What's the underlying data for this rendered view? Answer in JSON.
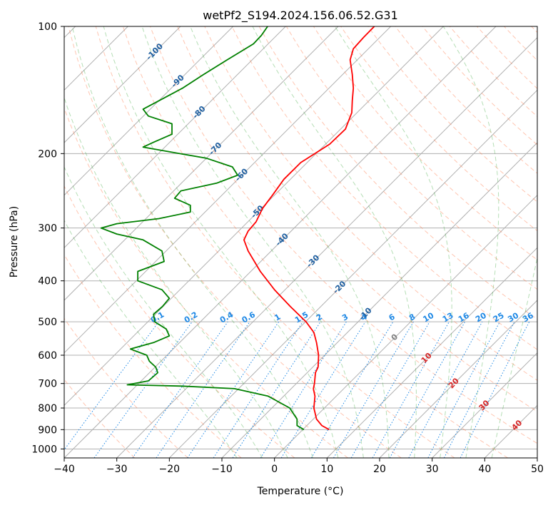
{
  "chart_data": {
    "type": "line",
    "subtype": "skew-T log-P diagram",
    "title": "wetPf2_S194.2024.156.06.52.G31",
    "xlabel": "Temperature (°C)",
    "ylabel": "Pressure (hPa)",
    "xlim": [
      -40,
      50
    ],
    "ylim": [
      1050,
      100
    ],
    "y_scale": "log",
    "grid": true,
    "x_ticks": [
      -40,
      -30,
      -20,
      -10,
      0,
      10,
      20,
      30,
      40,
      50
    ],
    "y_ticks": [
      100,
      200,
      300,
      400,
      500,
      600,
      700,
      800,
      900,
      1000
    ],
    "isotherm_labels": [
      "-100",
      "-90",
      "-80",
      "-70",
      "-60",
      "-50",
      "-40",
      "-30",
      "-20",
      "-10",
      "0",
      "10",
      "20",
      "30",
      "40"
    ],
    "isotherm_label_values": [
      -100,
      -90,
      -80,
      -70,
      -60,
      -50,
      -40,
      -30,
      -20,
      -10,
      0,
      10,
      20,
      30,
      40
    ],
    "mixing_ratio_labels": [
      "0.1",
      "0.2",
      "0.4",
      "0.6",
      "1",
      "1.5",
      "2",
      "3",
      "4",
      "6",
      "8",
      "10",
      "13",
      "16",
      "20",
      "25",
      "30",
      "36"
    ],
    "mixing_ratio_values": [
      0.1,
      0.2,
      0.4,
      0.6,
      1,
      1.5,
      2,
      3,
      4,
      6,
      8,
      10,
      13,
      16,
      20,
      25,
      30,
      36
    ],
    "series": [
      {
        "color": "#ff0000",
        "points": [
          {
            "p": 900,
            "x": 10.4
          },
          {
            "p": 880,
            "x": 9.0
          },
          {
            "p": 850,
            "x": 8.0
          },
          {
            "p": 800,
            "x": 7.5
          },
          {
            "p": 750,
            "x": 7.7
          },
          {
            "p": 720,
            "x": 7.4
          },
          {
            "p": 700,
            "x": 7.6
          },
          {
            "p": 660,
            "x": 7.8
          },
          {
            "p": 640,
            "x": 8.3
          },
          {
            "p": 600,
            "x": 8.4
          },
          {
            "p": 560,
            "x": 8.0
          },
          {
            "p": 530,
            "x": 7.5
          },
          {
            "p": 500,
            "x": 6.0
          },
          {
            "p": 460,
            "x": 3.0
          },
          {
            "p": 420,
            "x": 0.0
          },
          {
            "p": 380,
            "x": -2.7
          },
          {
            "p": 340,
            "x": -5.0
          },
          {
            "p": 320,
            "x": -5.8
          },
          {
            "p": 305,
            "x": -5.0
          },
          {
            "p": 290,
            "x": -3.5
          },
          {
            "p": 270,
            "x": -2.3
          },
          {
            "p": 250,
            "x": -0.3
          },
          {
            "p": 230,
            "x": 1.8
          },
          {
            "p": 210,
            "x": 5.0
          },
          {
            "p": 190,
            "x": 10.5
          },
          {
            "p": 175,
            "x": 13.5
          },
          {
            "p": 160,
            "x": 14.7
          },
          {
            "p": 150,
            "x": 14.8
          },
          {
            "p": 140,
            "x": 15.0
          },
          {
            "p": 130,
            "x": 14.8
          },
          {
            "p": 120,
            "x": 14.4
          },
          {
            "p": 113,
            "x": 15.0
          },
          {
            "p": 106,
            "x": 17.0
          },
          {
            "p": 100,
            "x": 19.0
          }
        ]
      },
      {
        "color": "#008000",
        "points": [
          {
            "p": 900,
            "x": 5.6
          },
          {
            "p": 880,
            "x": 4.3
          },
          {
            "p": 850,
            "x": 4.3
          },
          {
            "p": 800,
            "x": 2.9
          },
          {
            "p": 750,
            "x": -1.2
          },
          {
            "p": 720,
            "x": -7.6
          },
          {
            "p": 710,
            "x": -17.6
          },
          {
            "p": 705,
            "x": -28.0
          },
          {
            "p": 690,
            "x": -24.0
          },
          {
            "p": 660,
            "x": -22.2
          },
          {
            "p": 640,
            "x": -22.6
          },
          {
            "p": 620,
            "x": -23.8
          },
          {
            "p": 600,
            "x": -24.3
          },
          {
            "p": 580,
            "x": -27.4
          },
          {
            "p": 560,
            "x": -23.0
          },
          {
            "p": 540,
            "x": -20.0
          },
          {
            "p": 520,
            "x": -20.6
          },
          {
            "p": 500,
            "x": -22.8
          },
          {
            "p": 480,
            "x": -23.0
          },
          {
            "p": 460,
            "x": -21.3
          },
          {
            "p": 440,
            "x": -20.0
          },
          {
            "p": 420,
            "x": -21.4
          },
          {
            "p": 400,
            "x": -26.0
          },
          {
            "p": 380,
            "x": -26.0
          },
          {
            "p": 360,
            "x": -21.0
          },
          {
            "p": 340,
            "x": -21.4
          },
          {
            "p": 320,
            "x": -25.0
          },
          {
            "p": 310,
            "x": -30.0
          },
          {
            "p": 300,
            "x": -33.0
          },
          {
            "p": 293,
            "x": -30.0
          },
          {
            "p": 285,
            "x": -22.0
          },
          {
            "p": 275,
            "x": -16.0
          },
          {
            "p": 265,
            "x": -16.0
          },
          {
            "p": 255,
            "x": -19.0
          },
          {
            "p": 245,
            "x": -17.8
          },
          {
            "p": 235,
            "x": -11.0
          },
          {
            "p": 225,
            "x": -7.0
          },
          {
            "p": 215,
            "x": -8.0
          },
          {
            "p": 205,
            "x": -13.0
          },
          {
            "p": 198,
            "x": -20.0
          },
          {
            "p": 193,
            "x": -25.0
          },
          {
            "p": 188,
            "x": -23.0
          },
          {
            "p": 180,
            "x": -19.5
          },
          {
            "p": 170,
            "x": -19.5
          },
          {
            "p": 163,
            "x": -24.0
          },
          {
            "p": 157,
            "x": -25.0
          },
          {
            "p": 150,
            "x": -22.0
          },
          {
            "p": 140,
            "x": -17.5
          },
          {
            "p": 130,
            "x": -13.5
          },
          {
            "p": 120,
            "x": -9.0
          },
          {
            "p": 110,
            "x": -4.0
          },
          {
            "p": 105,
            "x": -2.5
          },
          {
            "p": 100,
            "x": -1.3
          }
        ]
      }
    ]
  },
  "colors": {
    "temperature": "#ff0000",
    "dewpoint": "#008000",
    "isotherm_label": "#1f5fa0",
    "mixing_ratio": "#1e88e5",
    "moist_adiabat": "#2ca02c",
    "dry_adiabat": "#ff7f50",
    "grid": "#b0b0b0",
    "warm_label": "#d62728",
    "zero_label": "#808080"
  }
}
